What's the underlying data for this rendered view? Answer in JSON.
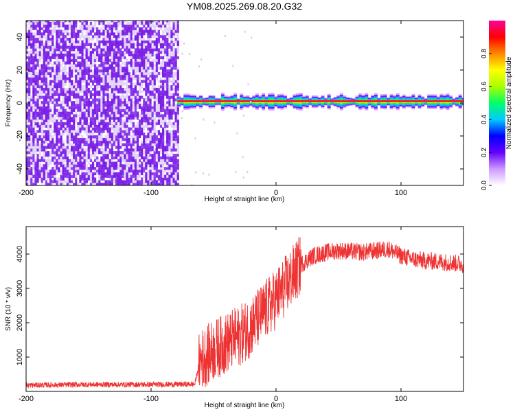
{
  "title": "YM08.2025.269.08.20.G32",
  "colors": {
    "signal": "#ee3333",
    "spectrogram_low": "#7a1ee6",
    "spectrogram_faint": "#d9c8f5",
    "background": "#ffffff"
  },
  "chart_data": [
    {
      "type": "heatmap",
      "xlabel": "Height of straight line (km)",
      "ylabel": "Frequency (Hz)",
      "xlim": [
        -200,
        150
      ],
      "ylim": [
        -50,
        50
      ],
      "xticks": [
        -200,
        -100,
        0,
        100
      ],
      "yticks": [
        -40,
        -20,
        0,
        20,
        40
      ],
      "noise_region_x": [
        -200,
        -79
      ],
      "tone_region_x": [
        -79,
        150
      ],
      "tone_frequency": 0.8,
      "colorbar": {
        "label": "Normalized spectral amplitude",
        "range": [
          0,
          1
        ],
        "ticks": [
          "0.0",
          "0.2",
          "0.4",
          "0.6",
          "0.8"
        ],
        "colors": [
          "#ffffff",
          "#cc99ff",
          "#6600ff",
          "#0000ff",
          "#00ccff",
          "#00ff66",
          "#aaff00",
          "#ffff00",
          "#ff8800",
          "#ff0000",
          "#ff0099"
        ]
      }
    },
    {
      "type": "line",
      "xlabel": "Height of straight line (km)",
      "ylabel": "SNR (10 * v/v)",
      "xlim": [
        -200,
        150
      ],
      "ylim": [
        0,
        4800
      ],
      "xticks": [
        -200,
        -100,
        0,
        100
      ],
      "yticks": [
        1000,
        2000,
        3000,
        4000
      ],
      "series": [
        {
          "x": [
            -200,
            -150,
            -100,
            -65,
            -61,
            -50,
            -40,
            -30,
            -20,
            -10,
            0,
            10,
            20,
            30,
            40,
            50,
            60,
            70,
            80,
            90,
            100,
            110,
            120,
            130,
            140,
            150
          ],
          "y": [
            180,
            200,
            200,
            210,
            900,
            1200,
            1400,
            1600,
            1900,
            2300,
            2700,
            3200,
            3700,
            3950,
            4050,
            4100,
            4080,
            4050,
            4100,
            4150,
            3950,
            3850,
            3800,
            3780,
            3750,
            3700
          ]
        }
      ]
    }
  ]
}
